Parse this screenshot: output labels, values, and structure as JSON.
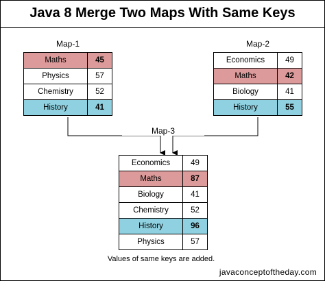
{
  "title": "Java 8 Merge Two Maps With Same Keys",
  "map1": {
    "label": "Map-1",
    "rows": [
      {
        "key": "Maths",
        "value": "45",
        "highlight": "red"
      },
      {
        "key": "Physics",
        "value": "57",
        "highlight": "none"
      },
      {
        "key": "Chemistry",
        "value": "52",
        "highlight": "none"
      },
      {
        "key": "History",
        "value": "41",
        "highlight": "blue"
      }
    ]
  },
  "map2": {
    "label": "Map-2",
    "rows": [
      {
        "key": "Economics",
        "value": "49",
        "highlight": "none"
      },
      {
        "key": "Maths",
        "value": "42",
        "highlight": "red"
      },
      {
        "key": "Biology",
        "value": "41",
        "highlight": "none"
      },
      {
        "key": "History",
        "value": "55",
        "highlight": "blue"
      }
    ]
  },
  "map3": {
    "label": "Map-3",
    "rows": [
      {
        "key": "Economics",
        "value": "49",
        "highlight": "none"
      },
      {
        "key": "Maths",
        "value": "87",
        "highlight": "red"
      },
      {
        "key": "Biology",
        "value": "41",
        "highlight": "none"
      },
      {
        "key": "Chemistry",
        "value": "52",
        "highlight": "none"
      },
      {
        "key": "History",
        "value": "96",
        "highlight": "blue"
      },
      {
        "key": "Physics",
        "value": "57",
        "highlight": "none"
      }
    ]
  },
  "note": "Values of same keys are added.",
  "footer": "javaconceptoftheday.com",
  "colors": {
    "red_highlight": "#dd9a9a",
    "blue_highlight": "#8fd1e0"
  }
}
